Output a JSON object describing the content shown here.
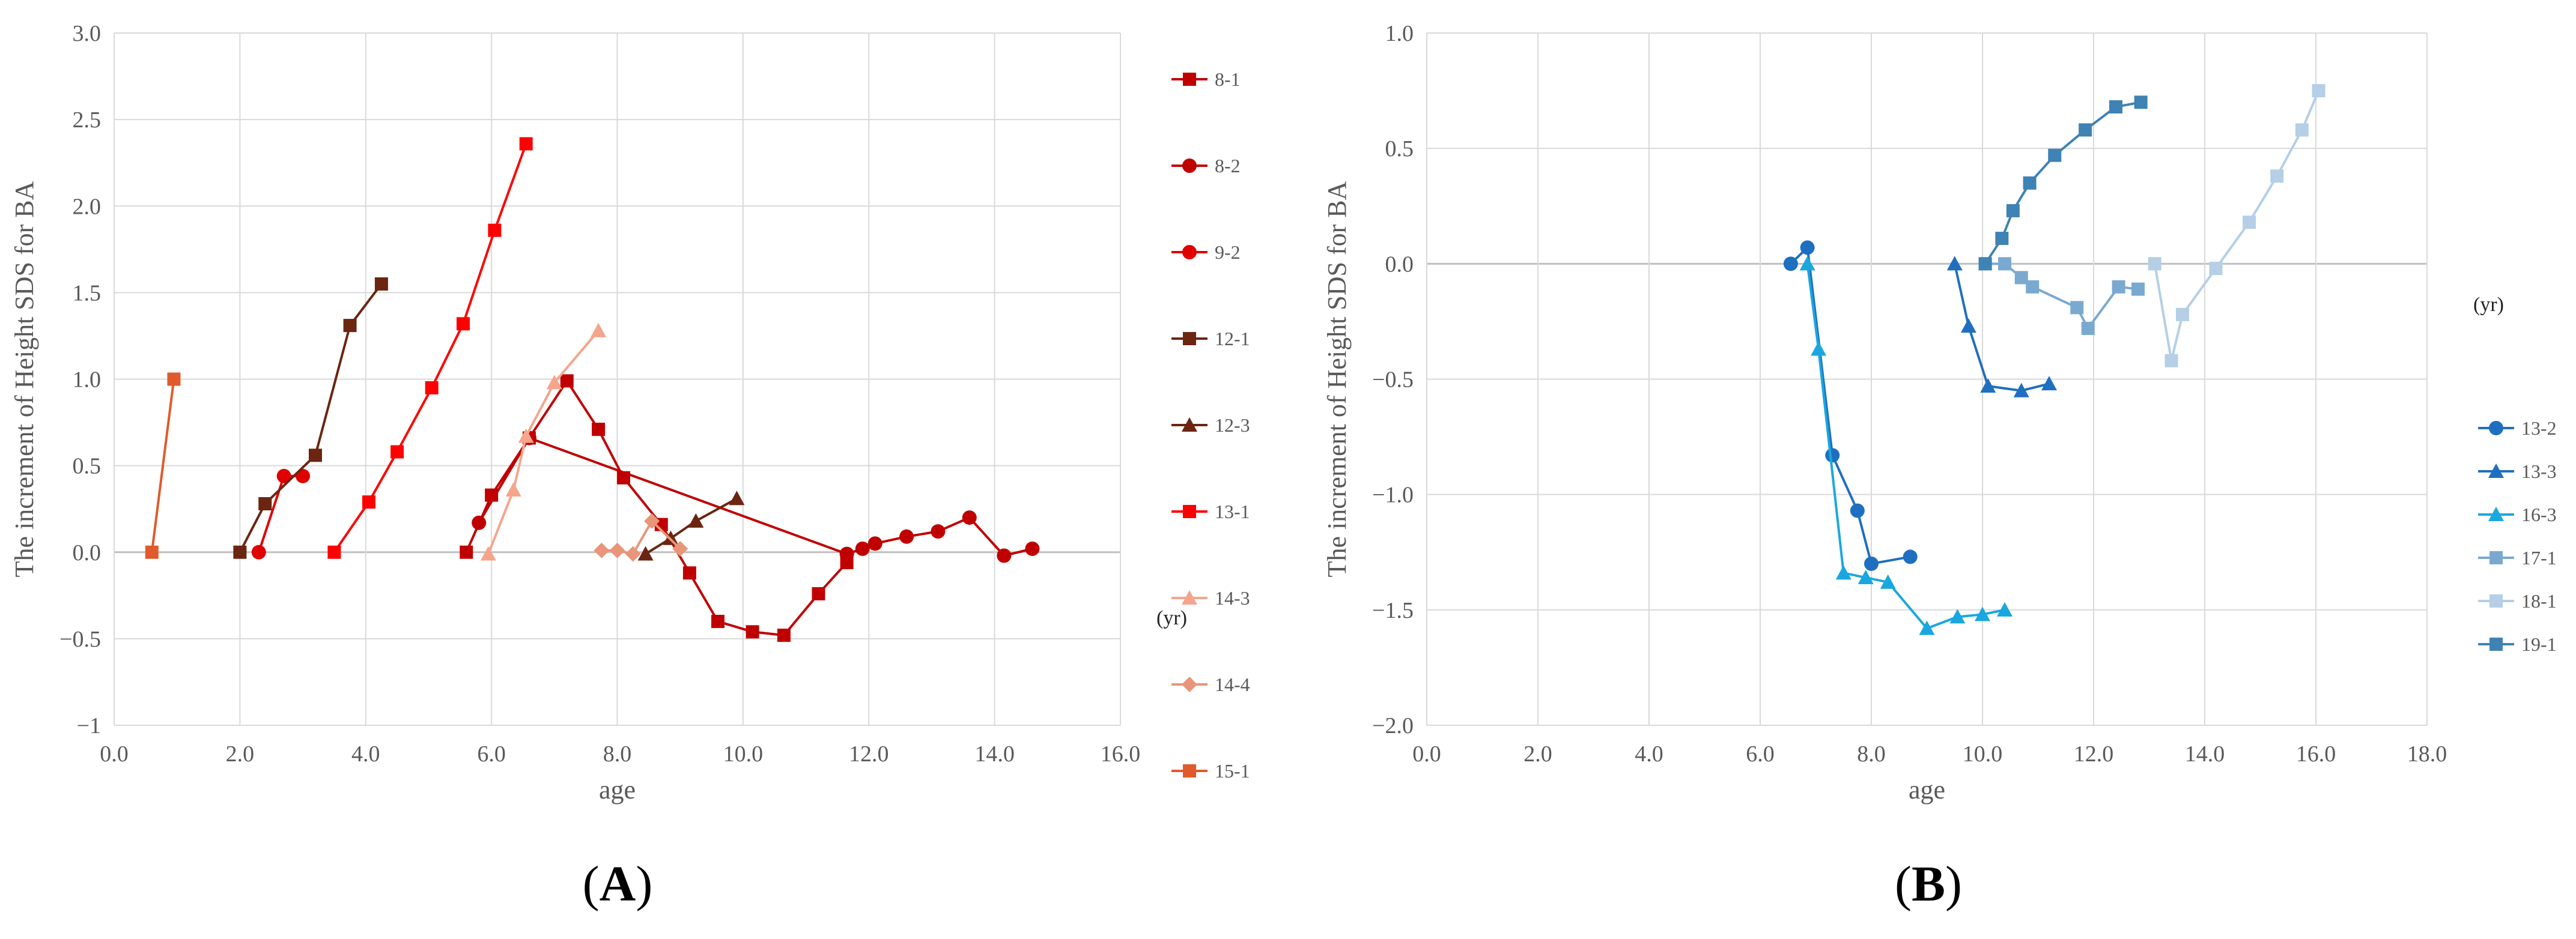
{
  "chart_data": [
    {
      "type": "line",
      "panel_label": {
        "open": "(",
        "letter": "A",
        "close": ")"
      },
      "xlabel": "age",
      "ylabel": "The increment of Height SDS for BA",
      "xlim": [
        0,
        16
      ],
      "ylim": [
        -1,
        3
      ],
      "x_ticks": [
        0,
        2,
        4,
        6,
        8,
        10,
        12,
        14,
        16
      ],
      "x_tick_labels": [
        "0.0",
        "2.0",
        "4.0",
        "6.0",
        "8.0",
        "10.0",
        "12.0",
        "14.0",
        "16.0"
      ],
      "y_ticks": [
        -1,
        -0.5,
        0,
        0.5,
        1,
        1.5,
        2,
        2.5,
        3
      ],
      "y_tick_labels": [
        "−1",
        "−0.5",
        "0.0",
        "0.5",
        "1.0",
        "1.5",
        "2.0",
        "2.5",
        "3.0"
      ],
      "unit_note": "(yr)",
      "grid": true,
      "legend_position": "right",
      "series": [
        {
          "name": "8-1",
          "color": "#c00000",
          "marker": "square",
          "points": [
            [
              5.6,
              0.0
            ],
            [
              6.0,
              0.33
            ],
            [
              6.6,
              0.66
            ],
            [
              7.2,
              0.99
            ],
            [
              7.7,
              0.71
            ],
            [
              8.1,
              0.43
            ],
            [
              8.7,
              0.16
            ],
            [
              9.15,
              -0.12
            ],
            [
              9.6,
              -0.4
            ],
            [
              10.15,
              -0.46
            ],
            [
              10.65,
              -0.48
            ],
            [
              11.2,
              -0.24
            ],
            [
              11.65,
              -0.06
            ]
          ]
        },
        {
          "name": "8-2",
          "color": "#c00000",
          "marker": "circle",
          "points": [
            [
              5.8,
              0.17
            ],
            [
              6.6,
              0.66
            ],
            [
              11.65,
              -0.01
            ],
            [
              11.9,
              0.02
            ],
            [
              12.1,
              0.05
            ],
            [
              12.6,
              0.09
            ],
            [
              13.1,
              0.12
            ],
            [
              13.6,
              0.2
            ],
            [
              14.15,
              -0.02
            ],
            [
              14.6,
              0.02
            ]
          ]
        },
        {
          "name": "9-2",
          "color": "#e00000",
          "marker": "circle",
          "points": [
            [
              2.3,
              0.0
            ],
            [
              2.7,
              0.44
            ],
            [
              3.0,
              0.44
            ]
          ]
        },
        {
          "name": "12-1",
          "color": "#6b2511",
          "marker": "square",
          "points": [
            [
              2.0,
              0.0
            ],
            [
              2.4,
              0.28
            ],
            [
              3.2,
              0.56
            ],
            [
              3.75,
              1.31
            ],
            [
              4.25,
              1.55
            ]
          ]
        },
        {
          "name": "12-3",
          "color": "#6b2511",
          "marker": "triangle",
          "points": [
            [
              8.45,
              -0.01
            ],
            [
              8.85,
              0.08
            ],
            [
              9.25,
              0.18
            ],
            [
              9.9,
              0.31
            ]
          ]
        },
        {
          "name": "13-1",
          "color": "#ff0000",
          "marker": "square",
          "points": [
            [
              3.5,
              0.0
            ],
            [
              4.05,
              0.29
            ],
            [
              4.5,
              0.58
            ],
            [
              5.05,
              0.95
            ],
            [
              5.55,
              1.32
            ],
            [
              6.05,
              1.86
            ],
            [
              6.55,
              2.36
            ]
          ]
        },
        {
          "name": "14-3",
          "color": "#f4a58c",
          "marker": "triangle",
          "points": [
            [
              5.95,
              -0.01
            ],
            [
              6.35,
              0.36
            ],
            [
              6.55,
              0.67
            ],
            [
              7.0,
              0.98
            ],
            [
              7.7,
              1.28
            ]
          ]
        },
        {
          "name": "14-4",
          "color": "#e8957a",
          "marker": "diamond",
          "points": [
            [
              7.75,
              0.01
            ],
            [
              8.0,
              0.01
            ],
            [
              8.25,
              -0.01
            ],
            [
              8.55,
              0.18
            ],
            [
              9.0,
              0.02
            ]
          ]
        },
        {
          "name": "15-1",
          "color": "#e05a2b",
          "marker": "square",
          "points": [
            [
              0.6,
              0.0
            ],
            [
              0.95,
              1.0
            ]
          ]
        }
      ]
    },
    {
      "type": "line",
      "panel_label": {
        "open": "(",
        "letter": "B",
        "close": ")"
      },
      "xlabel": "age",
      "ylabel": "The increment of Height SDS for BA",
      "xlim": [
        0,
        18
      ],
      "ylim": [
        -2,
        1
      ],
      "x_ticks": [
        0,
        2,
        4,
        6,
        8,
        10,
        12,
        14,
        16,
        18
      ],
      "x_tick_labels": [
        "0.0",
        "2.0",
        "4.0",
        "6.0",
        "8.0",
        "10.0",
        "12.0",
        "14.0",
        "16.0",
        "18.0"
      ],
      "y_ticks": [
        -2,
        -1.5,
        -1,
        -0.5,
        0,
        0.5,
        1
      ],
      "y_tick_labels": [
        "−2.0",
        "−1.5",
        "−1.0",
        "−0.5",
        "0.0",
        "0.5",
        "1.0"
      ],
      "unit_note": "(yr)",
      "grid": true,
      "legend_position": "right",
      "series": [
        {
          "name": "13-2",
          "color": "#1f6fc0",
          "marker": "circle",
          "points": [
            [
              6.55,
              0.0
            ],
            [
              6.85,
              0.07
            ],
            [
              7.3,
              -0.83
            ],
            [
              7.75,
              -1.07
            ],
            [
              8.0,
              -1.3
            ],
            [
              8.7,
              -1.27
            ]
          ]
        },
        {
          "name": "13-3",
          "color": "#1f6fc0",
          "marker": "triangle",
          "points": [
            [
              9.5,
              0.0
            ],
            [
              9.75,
              -0.27
            ],
            [
              10.1,
              -0.53
            ],
            [
              10.7,
              -0.55
            ],
            [
              11.2,
              -0.52
            ]
          ]
        },
        {
          "name": "16-3",
          "color": "#1aa7e0",
          "marker": "triangle",
          "points": [
            [
              6.85,
              0.0
            ],
            [
              7.05,
              -0.37
            ],
            [
              7.5,
              -1.34
            ],
            [
              7.9,
              -1.36
            ],
            [
              8.3,
              -1.38
            ],
            [
              9.0,
              -1.58
            ],
            [
              9.55,
              -1.53
            ],
            [
              10.0,
              -1.52
            ],
            [
              10.4,
              -1.5
            ]
          ]
        },
        {
          "name": "17-1",
          "color": "#7aa9d0",
          "marker": "square",
          "points": [
            [
              10.05,
              0.0
            ],
            [
              10.4,
              0.0
            ],
            [
              10.7,
              -0.06
            ],
            [
              10.9,
              -0.1
            ],
            [
              11.7,
              -0.19
            ],
            [
              11.9,
              -0.28
            ],
            [
              12.45,
              -0.1
            ],
            [
              12.8,
              -0.11
            ]
          ]
        },
        {
          "name": "18-1",
          "color": "#b4cfe6",
          "marker": "square",
          "points": [
            [
              13.1,
              0.0
            ],
            [
              13.4,
              -0.42
            ],
            [
              13.6,
              -0.22
            ],
            [
              14.2,
              -0.02
            ],
            [
              14.8,
              0.18
            ],
            [
              15.3,
              0.38
            ],
            [
              15.75,
              0.58
            ],
            [
              16.05,
              0.75
            ]
          ]
        },
        {
          "name": "19-1",
          "color": "#3f82b4",
          "marker": "square",
          "points": [
            [
              10.05,
              0.0
            ],
            [
              10.35,
              0.11
            ],
            [
              10.55,
              0.23
            ],
            [
              10.85,
              0.35
            ],
            [
              11.3,
              0.47
            ],
            [
              11.85,
              0.58
            ],
            [
              12.4,
              0.68
            ],
            [
              12.85,
              0.7
            ]
          ]
        }
      ]
    }
  ]
}
